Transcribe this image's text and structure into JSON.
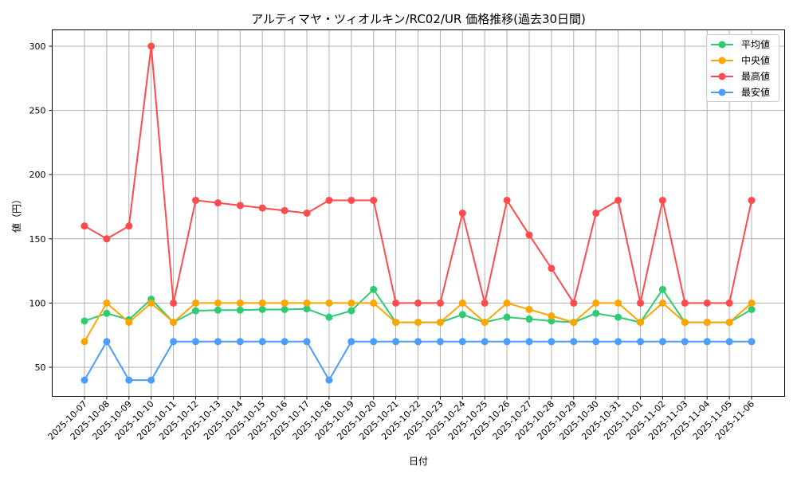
{
  "chart_data": {
    "type": "line",
    "title": "アルティマヤ・ツィオルキン/RC02/UR 価格推移(過去30日間)",
    "xlabel": "日付",
    "ylabel": "値（円）",
    "ylim": [
      27,
      313
    ],
    "yticks": [
      50,
      100,
      150,
      200,
      250,
      300
    ],
    "grid": true,
    "legend_position": "upper right",
    "x": [
      "2025-10-07",
      "2025-10-08",
      "2025-10-09",
      "2025-10-10",
      "2025-10-11",
      "2025-10-12",
      "2025-10-13",
      "2025-10-14",
      "2025-10-15",
      "2025-10-16",
      "2025-10-17",
      "2025-10-18",
      "2025-10-19",
      "2025-10-20",
      "2025-10-21",
      "2025-10-22",
      "2025-10-23",
      "2025-10-24",
      "2025-10-25",
      "2025-10-26",
      "2025-10-27",
      "2025-10-28",
      "2025-10-29",
      "2025-10-30",
      "2025-10-31",
      "2025-11-01",
      "2025-11-02",
      "2025-11-03",
      "2025-11-04",
      "2025-11-05",
      "2025-11-06"
    ],
    "series": [
      {
        "name": "平均値",
        "color": "#2ecc71",
        "values": [
          86,
          92,
          87,
          103,
          85,
          94,
          94.5,
          94.5,
          95,
          95,
          95.5,
          89,
          94,
          110.6,
          85,
          85,
          85,
          91,
          85,
          89,
          87.6,
          86,
          85,
          92,
          89,
          85,
          110.6,
          85,
          85,
          85,
          95
        ]
      },
      {
        "name": "中央値",
        "color": "#ffa500",
        "values": [
          70,
          100,
          85,
          100,
          85,
          100,
          100,
          100,
          100,
          100,
          100,
          100,
          100,
          100,
          85,
          85,
          85,
          100,
          85,
          100,
          95,
          90,
          85,
          100,
          100,
          85,
          100,
          85,
          85,
          85,
          100
        ]
      },
      {
        "name": "最高値",
        "color": "#ff4b4b",
        "values": [
          160,
          150,
          160,
          300,
          100,
          180,
          178,
          176,
          174,
          172,
          170,
          180,
          180,
          180,
          100,
          100,
          100,
          170,
          100,
          180,
          153,
          127,
          100,
          170,
          180,
          100,
          180,
          100,
          100,
          100,
          180
        ]
      },
      {
        "name": "最安値",
        "color": "#4b9dff",
        "values": [
          40,
          70,
          40,
          40,
          70,
          70,
          70,
          70,
          70,
          70,
          70,
          40,
          70,
          70,
          70,
          70,
          70,
          70,
          70,
          70,
          70,
          70,
          70,
          70,
          70,
          70,
          70,
          70,
          70,
          70,
          70
        ]
      }
    ]
  }
}
